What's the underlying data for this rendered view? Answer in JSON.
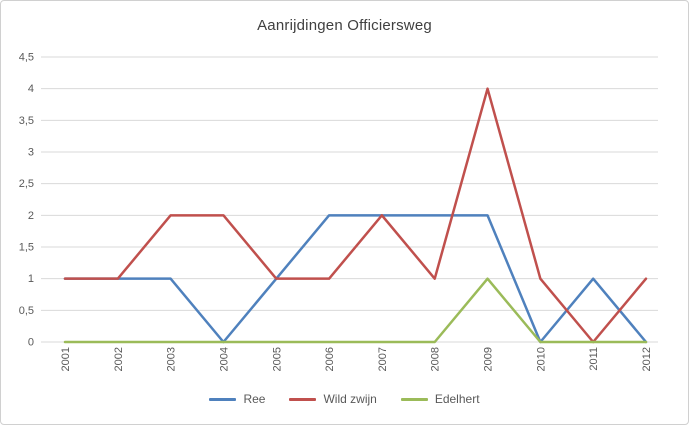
{
  "chart": {
    "title": "Aanrijdingen Officiersweg"
  },
  "chart_data": {
    "type": "line",
    "title": "Aanrijdingen Officiersweg",
    "categories": [
      "2001",
      "2002",
      "2003",
      "2004",
      "2005",
      "2006",
      "2007",
      "2008",
      "2009",
      "2010",
      "2011",
      "2012"
    ],
    "series": [
      {
        "name": "Ree",
        "color": "#4F81BD",
        "values": [
          1,
          1,
          1,
          0,
          1,
          2,
          2,
          2,
          2,
          0,
          1,
          0
        ]
      },
      {
        "name": "Wild zwijn",
        "color": "#C0504D",
        "values": [
          1,
          1,
          2,
          2,
          1,
          1,
          2,
          1,
          4,
          1,
          0,
          1
        ]
      },
      {
        "name": "Edelhert",
        "color": "#9BBB59",
        "values": [
          0,
          0,
          0,
          0,
          0,
          0,
          0,
          0,
          1,
          0,
          0,
          0
        ]
      }
    ],
    "ylim": [
      0,
      4.5
    ],
    "y_tick_step": 0.5,
    "y_tick_labels": [
      "0",
      "0,5",
      "1",
      "1,5",
      "2",
      "2,5",
      "3",
      "3,5",
      "4",
      "4,5"
    ],
    "xlabel": "",
    "ylabel": "",
    "grid": true,
    "legend_position": "bottom",
    "gridline_color": "#D9D9D9",
    "axis_text_color": "#595959",
    "title_color": "#404040"
  }
}
